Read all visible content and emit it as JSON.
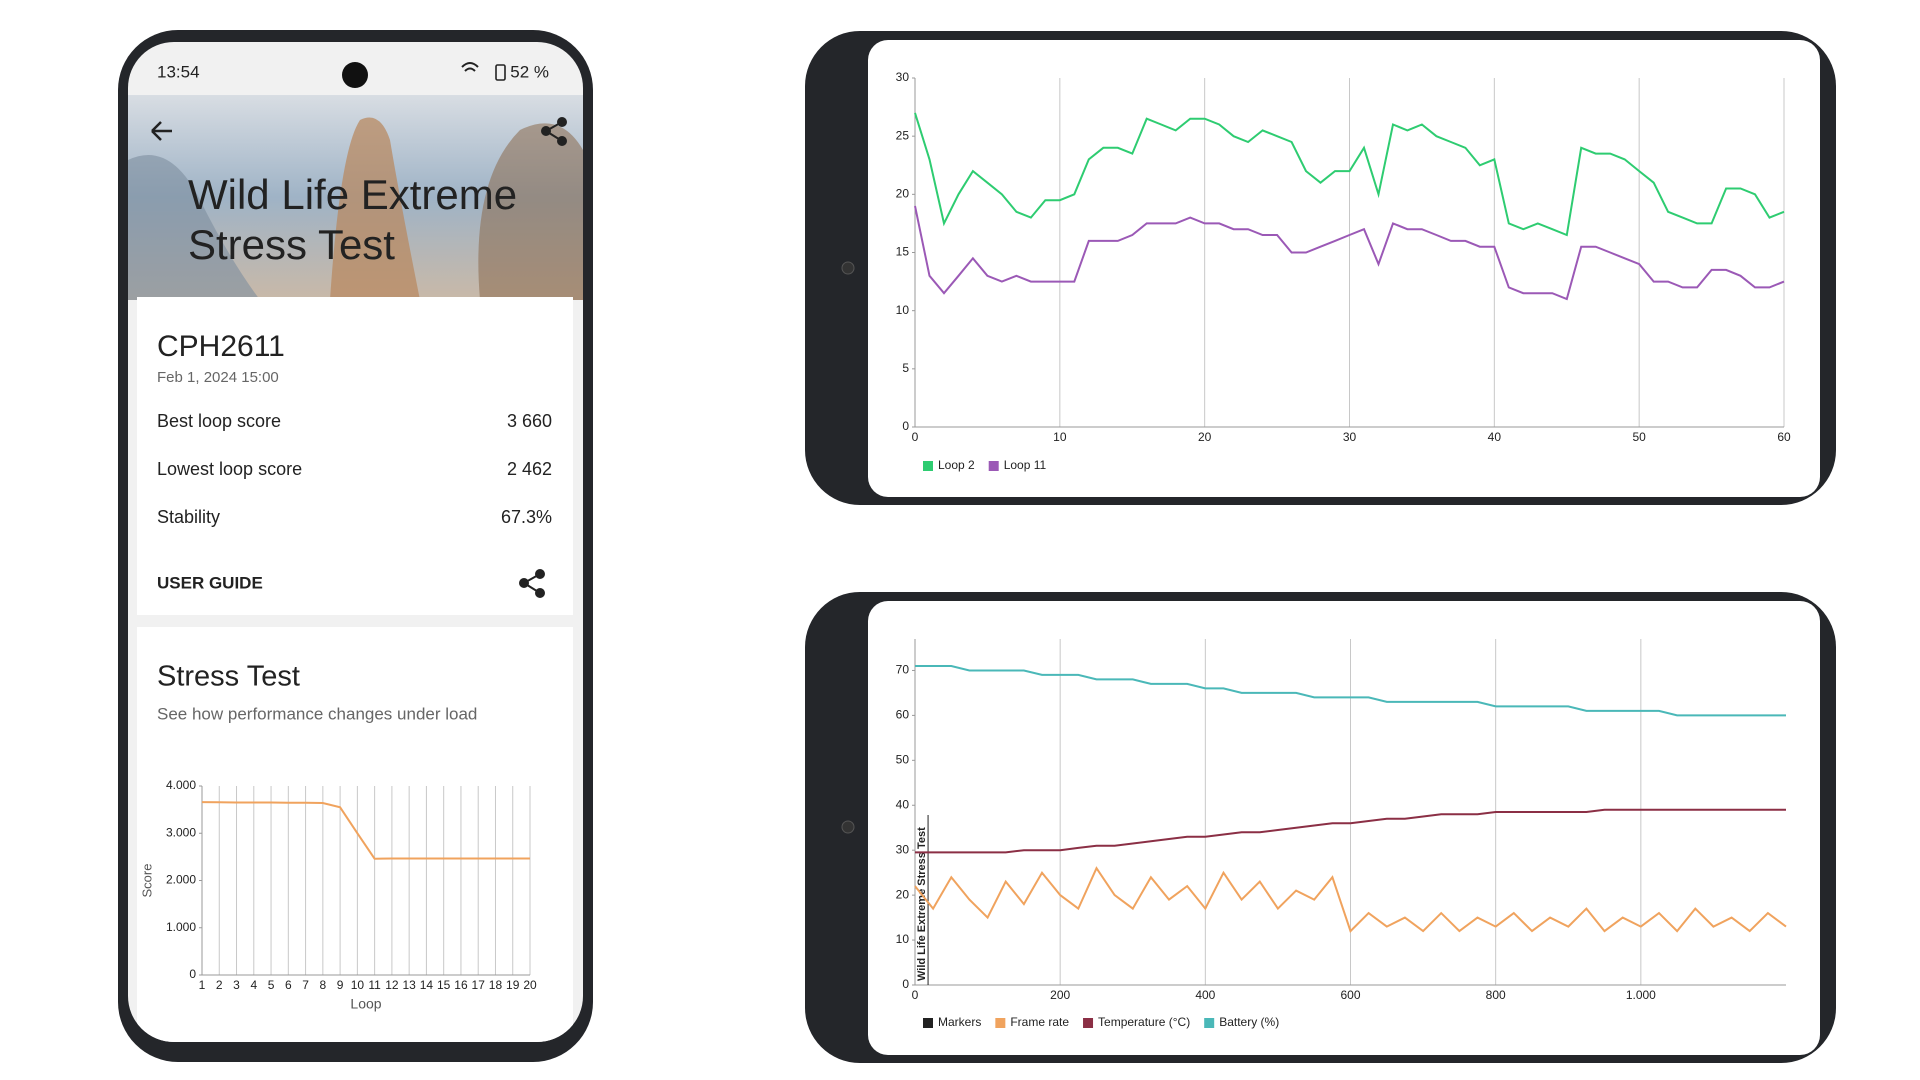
{
  "status_bar": {
    "time": "13:54",
    "battery": "52 %"
  },
  "header": {
    "title": [
      "Wild Life Extreme",
      "Stress Test"
    ]
  },
  "result_card": {
    "device": "CPH2611",
    "date": "Feb 1, 2024 15:00",
    "rows": [
      [
        "Best loop score",
        "3 660"
      ],
      [
        "Lowest loop score",
        "2 462"
      ],
      [
        "Stability",
        "67.3%"
      ]
    ],
    "user_guide": "USER GUIDE"
  },
  "stress_card": {
    "title": "Stress Test",
    "subtitle": "See how performance changes under load"
  },
  "chart_data": [
    {
      "type": "line",
      "color": "#f0a35e",
      "ylabel": "Score",
      "xlabel": "Loop",
      "grid": "vertical",
      "x": [
        1,
        2,
        3,
        4,
        5,
        6,
        7,
        8,
        9,
        10,
        11,
        12,
        13,
        14,
        15,
        16,
        17,
        18,
        19,
        20
      ],
      "values": [
        3660,
        3655,
        3650,
        3650,
        3650,
        3645,
        3645,
        3640,
        3550,
        3000,
        2462,
        2465,
        2465,
        2465,
        2465,
        2465,
        2465,
        2465,
        2465,
        2465
      ],
      "xlim": [
        1,
        20
      ],
      "ylim": [
        0,
        4000
      ],
      "yticks": [
        0,
        {
          "value": 1000,
          "label": "1.000"
        },
        {
          "value": 2000,
          "label": "2.000"
        },
        {
          "value": 3000,
          "label": "3.000"
        },
        {
          "value": 4000,
          "label": "4.000"
        }
      ]
    },
    {
      "type": "line",
      "grid": "vertical",
      "x": [
        0,
        1,
        2,
        3,
        4,
        5,
        6,
        7,
        8,
        9,
        10,
        11,
        12,
        13,
        14,
        15,
        16,
        17,
        18,
        19,
        20,
        21,
        22,
        23,
        24,
        25,
        26,
        27,
        28,
        29,
        30,
        31,
        32,
        33,
        34,
        35,
        36,
        37,
        38,
        39,
        40,
        41,
        42,
        43,
        44,
        45,
        46,
        47,
        48,
        49,
        50,
        51,
        52,
        53,
        54,
        55,
        56,
        57,
        58,
        59,
        60
      ],
      "series": [
        {
          "name": "Loop 2",
          "color": "#2ecc71",
          "values": [
            27,
            23,
            17.5,
            20,
            22,
            21,
            20,
            18.5,
            18,
            19.5,
            19.5,
            20,
            23,
            24,
            24,
            23.5,
            26.5,
            26,
            25.5,
            26.5,
            26.5,
            26,
            25,
            24.5,
            25.5,
            25,
            24.5,
            22,
            21,
            22,
            22,
            24,
            20,
            26,
            25.5,
            26,
            25,
            24.5,
            24,
            22.5,
            23,
            17.5,
            17,
            17.5,
            17,
            16.5,
            24,
            23.5,
            23.5,
            23,
            22,
            21,
            18.5,
            18,
            17.5,
            17.5,
            20.5,
            20.5,
            20,
            18,
            18.5
          ]
        },
        {
          "name": "Loop 11",
          "color": "#9b59b6",
          "values": [
            19,
            13,
            11.5,
            13,
            14.5,
            13,
            12.5,
            13,
            12.5,
            12.5,
            12.5,
            12.5,
            16,
            16,
            16,
            16.5,
            17.5,
            17.5,
            17.5,
            18,
            17.5,
            17.5,
            17,
            17,
            16.5,
            16.5,
            15,
            15,
            15.5,
            16,
            16.5,
            17,
            14,
            17.5,
            17,
            17,
            16.5,
            16,
            16,
            15.5,
            15.5,
            12,
            11.5,
            11.5,
            11.5,
            11,
            15.5,
            15.5,
            15,
            14.5,
            14,
            12.5,
            12.5,
            12,
            12,
            13.5,
            13.5,
            13,
            12,
            12,
            12.5
          ]
        }
      ],
      "xlim": [
        0,
        60
      ],
      "ylim": [
        0,
        30
      ],
      "xticks": [
        0,
        10,
        20,
        30,
        40,
        50,
        60
      ],
      "yticks": [
        0,
        5,
        10,
        15,
        20,
        25,
        30
      ]
    },
    {
      "type": "line",
      "grid": "vertical",
      "markers": {
        "name": "Markers",
        "color": "#222222",
        "x": [
          18
        ],
        "labels": [
          "Wild Life Extreme Stress Test"
        ]
      },
      "x": [
        0,
        25,
        50,
        75,
        100,
        125,
        150,
        175,
        200,
        225,
        250,
        275,
        300,
        325,
        350,
        375,
        400,
        425,
        450,
        475,
        500,
        525,
        550,
        575,
        600,
        625,
        650,
        675,
        700,
        725,
        750,
        775,
        800,
        825,
        850,
        875,
        900,
        925,
        950,
        975,
        1000,
        1025,
        1050,
        1075,
        1100,
        1125,
        1150,
        1175,
        1200
      ],
      "series": [
        {
          "name": "Frame rate",
          "color": "#f0a35e",
          "values": [
            22,
            17,
            24,
            19,
            15,
            23,
            18,
            25,
            20,
            17,
            26,
            20,
            17,
            24,
            19,
            22,
            17,
            25,
            19,
            23,
            17,
            21,
            19,
            24,
            12,
            16,
            13,
            15,
            12,
            16,
            12,
            15,
            13,
            16,
            12,
            15,
            13,
            17,
            12,
            15,
            13,
            16,
            12,
            17,
            13,
            15,
            12,
            16,
            13
          ]
        },
        {
          "name": "Temperature (°C)",
          "color": "#8b2f45",
          "values": [
            29.5,
            29.5,
            29.5,
            29.5,
            29.5,
            29.5,
            30,
            30,
            30,
            30.5,
            31,
            31,
            31.5,
            32,
            32.5,
            33,
            33,
            33.5,
            34,
            34,
            34.5,
            35,
            35.5,
            36,
            36,
            36.5,
            37,
            37,
            37.5,
            38,
            38,
            38,
            38.5,
            38.5,
            38.5,
            38.5,
            38.5,
            38.5,
            39,
            39,
            39,
            39,
            39,
            39,
            39,
            39,
            39,
            39,
            39
          ]
        },
        {
          "name": "Battery (%)",
          "color": "#4ab8b8",
          "values": [
            71,
            71,
            71,
            70,
            70,
            70,
            70,
            69,
            69,
            69,
            68,
            68,
            68,
            67,
            67,
            67,
            66,
            66,
            65,
            65,
            65,
            65,
            64,
            64,
            64,
            64,
            63,
            63,
            63,
            63,
            63,
            63,
            62,
            62,
            62,
            62,
            62,
            61,
            61,
            61,
            61,
            61,
            60,
            60,
            60,
            60,
            60,
            60,
            60
          ]
        }
      ],
      "xlim": [
        0,
        1200
      ],
      "ylim": [
        0,
        77
      ],
      "xticks": [
        0,
        200,
        400,
        600,
        800,
        {
          "value": 1000,
          "label": "1.000"
        }
      ],
      "yticks": [
        0,
        10,
        20,
        30,
        40,
        50,
        60,
        70
      ]
    }
  ]
}
